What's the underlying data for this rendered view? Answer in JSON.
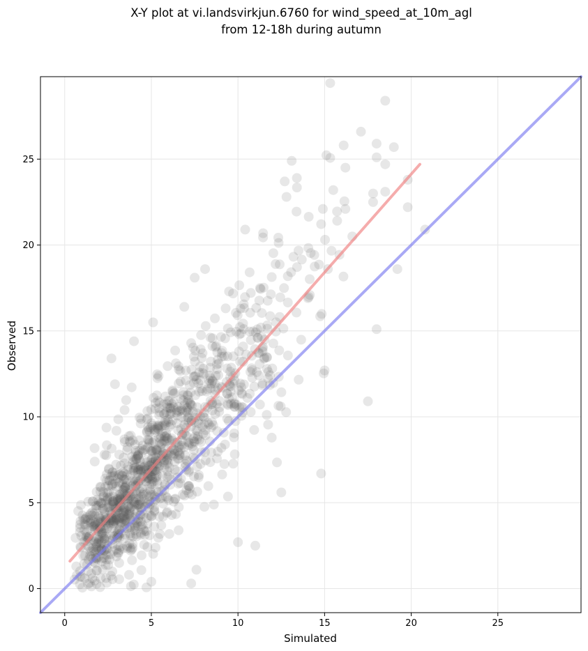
{
  "chart_data": {
    "type": "scatter",
    "title_lines": [
      "X-Y plot at vi.landsvirkjun.6760 for wind_speed_at_10m_agl",
      "from 12-18h during autumn"
    ],
    "xlabel": "Simulated",
    "ylabel": "Observed",
    "xlim": [
      -1.4,
      29.8
    ],
    "ylim": [
      -1.4,
      29.8
    ],
    "xticks": [
      0,
      5,
      10,
      15,
      20,
      25
    ],
    "yticks": [
      0,
      5,
      10,
      15,
      20,
      25
    ],
    "grid": true,
    "points_color": "#555555",
    "fit_line": {
      "color": "#f08080",
      "x": [
        0.3,
        20.5
      ],
      "y": [
        1.6,
        24.7
      ]
    },
    "identity_line": {
      "color": "#7b7bf0",
      "x": [
        -1.4,
        29.8
      ],
      "y": [
        -1.4,
        29.8
      ]
    },
    "highlighted_points": [
      [
        18.5,
        28.4
      ],
      [
        17.1,
        26.6
      ],
      [
        18.0,
        25.9
      ],
      [
        19.0,
        25.7
      ],
      [
        16.1,
        25.8
      ],
      [
        18.5,
        24.7
      ],
      [
        18.0,
        25.1
      ],
      [
        13.1,
        24.9
      ],
      [
        16.2,
        24.5
      ],
      [
        13.4,
        23.9
      ],
      [
        12.7,
        23.7
      ],
      [
        19.8,
        23.8
      ],
      [
        15.5,
        23.2
      ],
      [
        17.8,
        23.0
      ],
      [
        18.5,
        23.1
      ],
      [
        12.8,
        22.8
      ],
      [
        17.8,
        22.5
      ],
      [
        16.2,
        22.1
      ],
      [
        19.8,
        22.2
      ],
      [
        14.9,
        22.1
      ],
      [
        19.2,
        18.6
      ],
      [
        17.5,
        10.9
      ],
      [
        14.8,
        6.7
      ],
      [
        12.5,
        5.6
      ],
      [
        15.0,
        12.7
      ],
      [
        7.3,
        0.3
      ],
      [
        7.6,
        1.1
      ],
      [
        5.0,
        0.4
      ],
      [
        2.7,
        13.4
      ],
      [
        4.0,
        14.4
      ],
      [
        2.9,
        11.9
      ],
      [
        5.1,
        15.5
      ],
      [
        7.5,
        18.1
      ],
      [
        11.0,
        2.5
      ],
      [
        10.0,
        2.7
      ],
      [
        6.9,
        16.4
      ],
      [
        18.0,
        15.1
      ],
      [
        20.8,
        20.9
      ],
      [
        16.6,
        20.5
      ],
      [
        8.1,
        18.6
      ]
    ],
    "cloud": {
      "n": 1200,
      "x_range": [
        0.3,
        20.5
      ],
      "fit_intercept": 1.2,
      "fit_slope": 1.15,
      "residual_sd": 2.4
    }
  }
}
